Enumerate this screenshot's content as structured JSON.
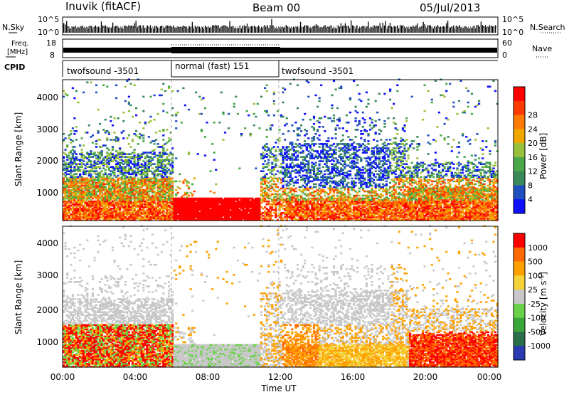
{
  "header": {
    "station": "Inuvik (fitACF)",
    "beam": "Beam 00",
    "date": "05/Jul/2013"
  },
  "noise_panel": {
    "left_label": "N.Sky",
    "right_label": "N.Search",
    "left_ticks": [
      "10^5",
      "10^0"
    ],
    "right_ticks": [
      "10^5",
      "10^0"
    ]
  },
  "freq_panel": {
    "left_label_1": "Freq.",
    "left_label_2": "[MHz]",
    "left_ticks": [
      "18",
      "8"
    ],
    "right_label": "Nave",
    "right_ticks": [
      "60",
      "0"
    ]
  },
  "cpid": {
    "label": "CPID",
    "segments": [
      {
        "name": "twofsound -3501",
        "start": 0,
        "end": 6
      },
      {
        "name": "normal (fast) 151",
        "start": 6,
        "end": 12
      },
      {
        "name": "twofsound -3501",
        "start": 12,
        "end": 24
      }
    ]
  },
  "power_panel": {
    "ylabel": "Slant Range [km]",
    "yticks": [
      "1000",
      "2000",
      "3000",
      "4000"
    ],
    "colorbar_label": "Power [dB]",
    "colorbar_ticks": [
      "4",
      "8",
      "12",
      "16",
      "20",
      "24",
      "28"
    ],
    "colors": [
      "#1010ff",
      "#2050c0",
      "#3a8a5a",
      "#4aa84a",
      "#98c03a",
      "#f0a800",
      "#ff7a00",
      "#ff3a00",
      "#ff0000"
    ]
  },
  "velocity_panel": {
    "ylabel": "Slant Range [km]",
    "yticks": [
      "1000",
      "2000",
      "3000",
      "4000"
    ],
    "colorbar_label": "Velocity [m s^-1]",
    "colorbar_ticks": [
      "1000",
      "500",
      "100",
      "25",
      "-25",
      "-100",
      "-500",
      "-1000"
    ],
    "colors": [
      "#2a3ab0",
      "#2a6e4a",
      "#3aa63a",
      "#6ad24a",
      "#c8c8c8",
      "#f5d23a",
      "#ffa000",
      "#ff6a00",
      "#ff0000"
    ]
  },
  "xaxis": {
    "label": "Time UT",
    "ticks": [
      "00:00",
      "04:00",
      "08:00",
      "12:00",
      "16:00",
      "20:00",
      "00:00"
    ]
  },
  "chart_data": {
    "type": "heatmap",
    "title": "Inuvik (fitACF) Beam 00 05/Jul/2013",
    "xlabel": "Time UT",
    "ylabel": "Slant Range [km]",
    "x_range_hours": [
      0,
      24
    ],
    "y_range_km": [
      180,
      4600
    ],
    "panels": [
      "Power [dB]",
      "Velocity [m s^-1]"
    ],
    "power_range_db": [
      0,
      30
    ],
    "velocity_range": [
      -1000,
      1000
    ],
    "mode_change_hours": [
      6,
      12
    ],
    "grid": false
  }
}
